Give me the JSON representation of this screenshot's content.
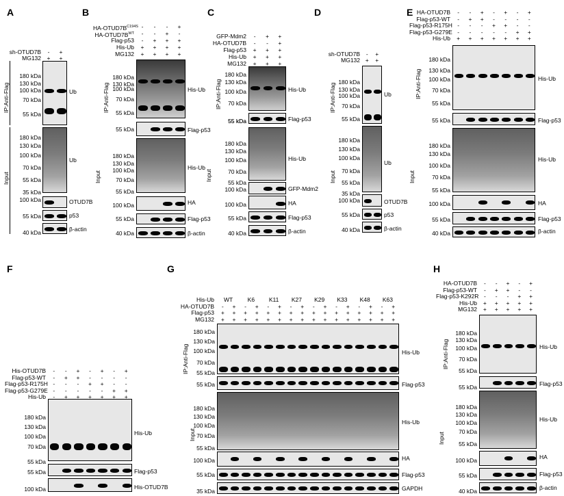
{
  "panels": {
    "A": {
      "letter": "A",
      "rows": [
        {
          "name": "sh-OTUD7B",
          "signs": [
            "-",
            "+"
          ]
        },
        {
          "name": "MG132",
          "signs": [
            "+",
            "+"
          ]
        }
      ],
      "mw": [
        "180 kDa",
        "130 kDa",
        "100 kDa",
        "70 kDa",
        "55 kDa"
      ],
      "mw2": [
        "180 kDa",
        "130 kDa",
        "100 kDa",
        "70 kDa",
        "55 kDa",
        "35 kDa"
      ],
      "mw3": [
        "100 kDa",
        "55 kDa",
        "40 kDa"
      ],
      "labels": [
        "Ub",
        "Ub",
        "OTUD7B",
        "p53",
        "β-actin"
      ],
      "ip": "IP:Anti-Flag",
      "input": "Input"
    },
    "B": {
      "letter": "B",
      "rows": [
        {
          "name": "HA-OTUD7B",
          "sup": "C194S",
          "signs": [
            "-",
            "-",
            "-",
            "+"
          ]
        },
        {
          "name": "HA-OTUD7B",
          "sup": "WT",
          "signs": [
            "-",
            "-",
            "+",
            "-"
          ]
        },
        {
          "name": "Flag-p53",
          "signs": [
            "-",
            "+",
            "+",
            "+"
          ]
        },
        {
          "name": "His-Ub",
          "signs": [
            "+",
            "+",
            "+",
            "+"
          ]
        },
        {
          "name": "MG132",
          "signs": [
            "+",
            "+",
            "+",
            "+"
          ]
        }
      ],
      "mw": [
        "180 kDa",
        "130 kDa",
        "100 kDa",
        "70 kDa",
        "55 kDa"
      ],
      "mw_b": [
        "55 kDa"
      ],
      "mw2": [
        "180 kDa",
        "130 kDa",
        "100 kDa",
        "70 kDa",
        "55 kDa"
      ],
      "mw3": [
        "100 kDa",
        "55 kDa",
        "40 kDa"
      ],
      "labels": [
        "His-Ub",
        "Flag-p53",
        "His-Ub",
        "HA",
        "Flag-p53",
        "β-actin"
      ],
      "ip": "IP:Anti-Flag",
      "input": "Input"
    },
    "C": {
      "letter": "C",
      "rows": [
        {
          "name": "GFP-Mdm2",
          "signs": [
            "-",
            "+",
            "+"
          ]
        },
        {
          "name": "HA-OTUD7B",
          "signs": [
            "-",
            "-",
            "+"
          ]
        },
        {
          "name": "Flag-p53",
          "signs": [
            "+",
            "+",
            "+"
          ]
        },
        {
          "name": "His-Ub",
          "signs": [
            "+",
            "+",
            "+"
          ]
        },
        {
          "name": "MG132",
          "signs": [
            "+",
            "+",
            "+"
          ]
        }
      ],
      "mw": [
        "180 kDa",
        "130 kDa",
        "100 kDa",
        "70 kDa",
        "55 kDa"
      ],
      "mw_b": [
        "55 kDa"
      ],
      "mw2": [
        "180 kDa",
        "130 kDa",
        "100 kDa",
        "70 kDa",
        "55 kDa"
      ],
      "mw3": [
        "100 kDa",
        "100 kDa",
        "55 kDa",
        "40 kDa"
      ],
      "labels": [
        "His-Ub",
        "Flag-p53",
        "His-Ub",
        "GFP-Mdm2",
        "HA",
        "Flag-p53",
        "β-actin"
      ],
      "ip": "IP:Anti-Flag",
      "input": "Input"
    },
    "D": {
      "letter": "D",
      "rows": [
        {
          "name": "sh-OTUD7B",
          "signs": [
            "-",
            "+"
          ]
        },
        {
          "name": "MG132",
          "signs": [
            "+",
            "+"
          ]
        }
      ],
      "mw": [
        "180 kDa",
        "130 kDa",
        "100 kDa",
        "70 kDa",
        "55 kDa"
      ],
      "mw2": [
        "180 kDa",
        "130 kDa",
        "100 kDa",
        "70 kDa",
        "55 kDa",
        "35 kDa"
      ],
      "mw3": [
        "100 kDa",
        "55 kDa",
        "40 kDa"
      ],
      "labels": [
        "Ub",
        "Ub",
        "OTUD7B",
        "p53",
        "β-actin"
      ],
      "ip": "IP:Anti-Flag",
      "input": "Input"
    },
    "E": {
      "letter": "E",
      "rows": [
        {
          "name": "HA-OTUD7B",
          "signs": [
            "-",
            "-",
            "+",
            "-",
            "+",
            "-",
            "+"
          ]
        },
        {
          "name": "Flag-p53-WT",
          "signs": [
            "-",
            "+",
            "+",
            "-",
            "-",
            "-",
            "-"
          ]
        },
        {
          "name": "Flag-p53-R175H",
          "signs": [
            "-",
            "-",
            "-",
            "+",
            "+",
            "-",
            "-"
          ]
        },
        {
          "name": "Flag-p53-G279E",
          "signs": [
            "-",
            "-",
            "-",
            "-",
            "-",
            "+",
            "+"
          ]
        },
        {
          "name": "His-Ub",
          "signs": [
            "+",
            "+",
            "+",
            "+",
            "+",
            "+",
            "+"
          ]
        }
      ],
      "mw": [
        "180 kDa",
        "130 kDa",
        "100 kDa",
        "70 kDa",
        "55 kDa"
      ],
      "mw_b": [
        "55 kDa"
      ],
      "mw2": [
        "180 kDa",
        "130 kDa",
        "100 kDa",
        "70 kDa",
        "55 kDa"
      ],
      "mw3": [
        "100 kDa",
        "55 kDa",
        "40 kDa"
      ],
      "labels": [
        "His-Ub",
        "Flag-p53",
        "His-Ub",
        "HA",
        "Flag-p53",
        "β-actin"
      ],
      "ip": "IP:Anti-Flag",
      "input": "Input"
    },
    "F": {
      "letter": "F",
      "rows": [
        {
          "name": "His-OTUD7B",
          "signs": [
            "-",
            "-",
            "+",
            "-",
            "+",
            "-",
            "+"
          ]
        },
        {
          "name": "Flag-p53-WT",
          "signs": [
            "-",
            "+",
            "+",
            "-",
            "-",
            "-",
            "-"
          ]
        },
        {
          "name": "Flag-p53-R175H",
          "signs": [
            "-",
            "-",
            "-",
            "+",
            "+",
            "-",
            "-"
          ]
        },
        {
          "name": "Flag-p53-G279E",
          "signs": [
            "-",
            "-",
            "-",
            "-",
            "-",
            "+",
            "+"
          ]
        },
        {
          "name": "His-Ub",
          "signs": [
            "-",
            "+",
            "+",
            "+",
            "+",
            "+",
            "+"
          ]
        }
      ],
      "mw": [
        "180 kDa",
        "130 kDa",
        "100 kDa",
        "70 kDa",
        "55 kDa"
      ],
      "mw3": [
        "55 kDa",
        "100 kDa"
      ],
      "labels": [
        "His-Ub",
        "Flag-p53",
        "His-OTUD7B"
      ]
    },
    "G": {
      "letter": "G",
      "groups": [
        "WT",
        "K6",
        "K11",
        "K27",
        "K29",
        "K33",
        "K48",
        "K63"
      ],
      "rows": [
        {
          "name": "His-Ub"
        },
        {
          "name": "HA-OTUD7B",
          "signs": [
            "-",
            "+",
            "-",
            "+",
            "-",
            "+",
            "-",
            "+",
            "-",
            "+",
            "-",
            "+",
            "-",
            "+",
            "-",
            "+"
          ]
        },
        {
          "name": "Flag-p53",
          "signs": [
            "+",
            "+",
            "+",
            "+",
            "+",
            "+",
            "+",
            "+",
            "+",
            "+",
            "+",
            "+",
            "+",
            "+",
            "+",
            "+"
          ]
        },
        {
          "name": "MG132",
          "signs": [
            "+",
            "+",
            "+",
            "+",
            "+",
            "+",
            "+",
            "+",
            "+",
            "+",
            "+",
            "+",
            "+",
            "+",
            "+",
            "+"
          ]
        }
      ],
      "mw": [
        "180 kDa",
        "130 kDa",
        "100 kDa",
        "70 kDa",
        "55 kDa"
      ],
      "mw_b": [
        "55 kDa"
      ],
      "mw2": [
        "180 kDa",
        "130 kDa",
        "100 kDa",
        "70 kDa",
        "55 kDa"
      ],
      "mw3": [
        "100 kDa",
        "55 kDa",
        "35 kDa"
      ],
      "labels": [
        "His-Ub",
        "Flag-p53",
        "His-Ub",
        "HA",
        "Flag-p53",
        "GAPDH"
      ],
      "ip": "IP:Anti-Flag",
      "input": "Input"
    },
    "H": {
      "letter": "H",
      "rows": [
        {
          "name": "HA-OTUD7B",
          "signs": [
            "-",
            "-",
            "+",
            "-",
            "+"
          ]
        },
        {
          "name": "Flag-p53-WT",
          "signs": [
            "-",
            "+",
            "+",
            "-",
            "-"
          ]
        },
        {
          "name": "Flag-p53-K292R",
          "signs": [
            "-",
            "-",
            "-",
            "+",
            "+"
          ]
        },
        {
          "name": "His-Ub",
          "signs": [
            "+",
            "+",
            "+",
            "+",
            "+"
          ]
        },
        {
          "name": "MG132",
          "signs": [
            "+",
            "+",
            "+",
            "+",
            "+"
          ]
        }
      ],
      "mw": [
        "180 kDa",
        "130 kDa",
        "100 kDa",
        "70 kDa",
        "55 kDa"
      ],
      "mw_b": [
        "55 kDa"
      ],
      "mw2": [
        "180 kDa",
        "130 kDa",
        "100 kDa",
        "70 kDa",
        "55 kDa"
      ],
      "mw3": [
        "100 kDa",
        "55 kDa",
        "40 kDa"
      ],
      "labels": [
        "His-Ub",
        "Flag-p53",
        "His-Ub",
        "HA",
        "Flag-p53",
        "β-actin"
      ],
      "ip": "IP:Anti-Flag",
      "input": "Input"
    }
  }
}
